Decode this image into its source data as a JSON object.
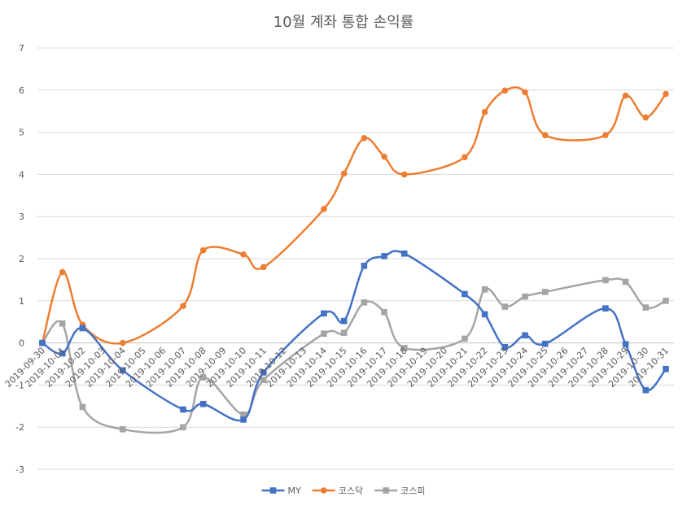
{
  "chart_data": {
    "type": "line",
    "title": "10월 계좌 통합 손익률",
    "xlabel": "",
    "ylabel": "",
    "ylim": [
      -3,
      7
    ],
    "yticks": [
      -3,
      -2,
      -1,
      0,
      1,
      2,
      3,
      4,
      5,
      6,
      7
    ],
    "grid": true,
    "legend_position": "bottom",
    "smooth": true,
    "categories": [
      "2019-09-30",
      "2019-10-01",
      "2019-10-02",
      "2019-10-03",
      "2019-10-04",
      "2019-10-05",
      "2019-10-06",
      "2019-10-07",
      "2019-10-08",
      "2019-10-09",
      "2019-10-10",
      "2019-10-11",
      "2019-10-12",
      "2019-10-13",
      "2019-10-14",
      "2019-10-15",
      "2019-10-16",
      "2019-10-17",
      "2019-10-18",
      "2019-10-19",
      "2019-10-20",
      "2019-10-21",
      "2019-10-22",
      "2019-10-23",
      "2019-10-24",
      "2019-10-25",
      "2019-10-26",
      "2019-10-27",
      "2019-10-28",
      "2019-10-29",
      "2019-10-30",
      "2019-10-31"
    ],
    "series": [
      {
        "name": "MY",
        "color": "#4472C4",
        "marker": "square",
        "points": [
          {
            "x": "2019-09-30",
            "y": 0
          },
          {
            "x": "2019-10-01",
            "y": -0.25
          },
          {
            "x": "2019-10-02",
            "y": 0.35
          },
          {
            "x": "2019-10-04",
            "y": -0.65
          },
          {
            "x": "2019-10-07",
            "y": -1.58
          },
          {
            "x": "2019-10-08",
            "y": -1.45
          },
          {
            "x": "2019-10-10",
            "y": -1.82
          },
          {
            "x": "2019-10-11",
            "y": -0.7
          },
          {
            "x": "2019-10-14",
            "y": 0.7
          },
          {
            "x": "2019-10-15",
            "y": 0.52
          },
          {
            "x": "2019-10-16",
            "y": 1.83
          },
          {
            "x": "2019-10-17",
            "y": 2.06
          },
          {
            "x": "2019-10-18",
            "y": 2.12
          },
          {
            "x": "2019-10-21",
            "y": 1.16
          },
          {
            "x": "2019-10-22",
            "y": 0.68
          },
          {
            "x": "2019-10-23",
            "y": -0.1
          },
          {
            "x": "2019-10-24",
            "y": 0.18
          },
          {
            "x": "2019-10-25",
            "y": -0.02
          },
          {
            "x": "2019-10-28",
            "y": 0.82
          },
          {
            "x": "2019-10-29",
            "y": -0.03
          },
          {
            "x": "2019-10-30",
            "y": -1.12
          },
          {
            "x": "2019-10-31",
            "y": -0.62
          }
        ]
      },
      {
        "name": "코스닥",
        "color": "#ED7D31",
        "marker": "circle",
        "points": [
          {
            "x": "2019-09-30",
            "y": 0
          },
          {
            "x": "2019-10-01",
            "y": 1.68
          },
          {
            "x": "2019-10-02",
            "y": 0.43
          },
          {
            "x": "2019-10-04",
            "y": 0.0
          },
          {
            "x": "2019-10-07",
            "y": 0.88
          },
          {
            "x": "2019-10-08",
            "y": 2.2
          },
          {
            "x": "2019-10-10",
            "y": 2.1
          },
          {
            "x": "2019-10-11",
            "y": 1.8
          },
          {
            "x": "2019-10-14",
            "y": 3.18
          },
          {
            "x": "2019-10-15",
            "y": 4.02
          },
          {
            "x": "2019-10-16",
            "y": 4.86
          },
          {
            "x": "2019-10-17",
            "y": 4.42
          },
          {
            "x": "2019-10-18",
            "y": 4.0
          },
          {
            "x": "2019-10-21",
            "y": 4.41
          },
          {
            "x": "2019-10-22",
            "y": 5.48
          },
          {
            "x": "2019-10-23",
            "y": 5.99
          },
          {
            "x": "2019-10-24",
            "y": 5.95
          },
          {
            "x": "2019-10-25",
            "y": 4.93
          },
          {
            "x": "2019-10-28",
            "y": 4.93
          },
          {
            "x": "2019-10-29",
            "y": 5.87
          },
          {
            "x": "2019-10-30",
            "y": 5.35
          },
          {
            "x": "2019-10-31",
            "y": 5.91
          }
        ]
      },
      {
        "name": "코스피",
        "color": "#A5A5A5",
        "marker": "square",
        "points": [
          {
            "x": "2019-09-30",
            "y": 0
          },
          {
            "x": "2019-10-01",
            "y": 0.46
          },
          {
            "x": "2019-10-02",
            "y": -1.52
          },
          {
            "x": "2019-10-04",
            "y": -2.05
          },
          {
            "x": "2019-10-07",
            "y": -2.0
          },
          {
            "x": "2019-10-08",
            "y": -0.82
          },
          {
            "x": "2019-10-10",
            "y": -1.7
          },
          {
            "x": "2019-10-11",
            "y": -0.88
          },
          {
            "x": "2019-10-14",
            "y": 0.22
          },
          {
            "x": "2019-10-15",
            "y": 0.24
          },
          {
            "x": "2019-10-16",
            "y": 0.96
          },
          {
            "x": "2019-10-17",
            "y": 0.73
          },
          {
            "x": "2019-10-18",
            "y": -0.12
          },
          {
            "x": "2019-10-21",
            "y": 0.1
          },
          {
            "x": "2019-10-22",
            "y": 1.27
          },
          {
            "x": "2019-10-23",
            "y": 0.86
          },
          {
            "x": "2019-10-24",
            "y": 1.1
          },
          {
            "x": "2019-10-25",
            "y": 1.21
          },
          {
            "x": "2019-10-28",
            "y": 1.49
          },
          {
            "x": "2019-10-29",
            "y": 1.45
          },
          {
            "x": "2019-10-30",
            "y": 0.84
          },
          {
            "x": "2019-10-31",
            "y": 1.0
          }
        ]
      }
    ]
  }
}
